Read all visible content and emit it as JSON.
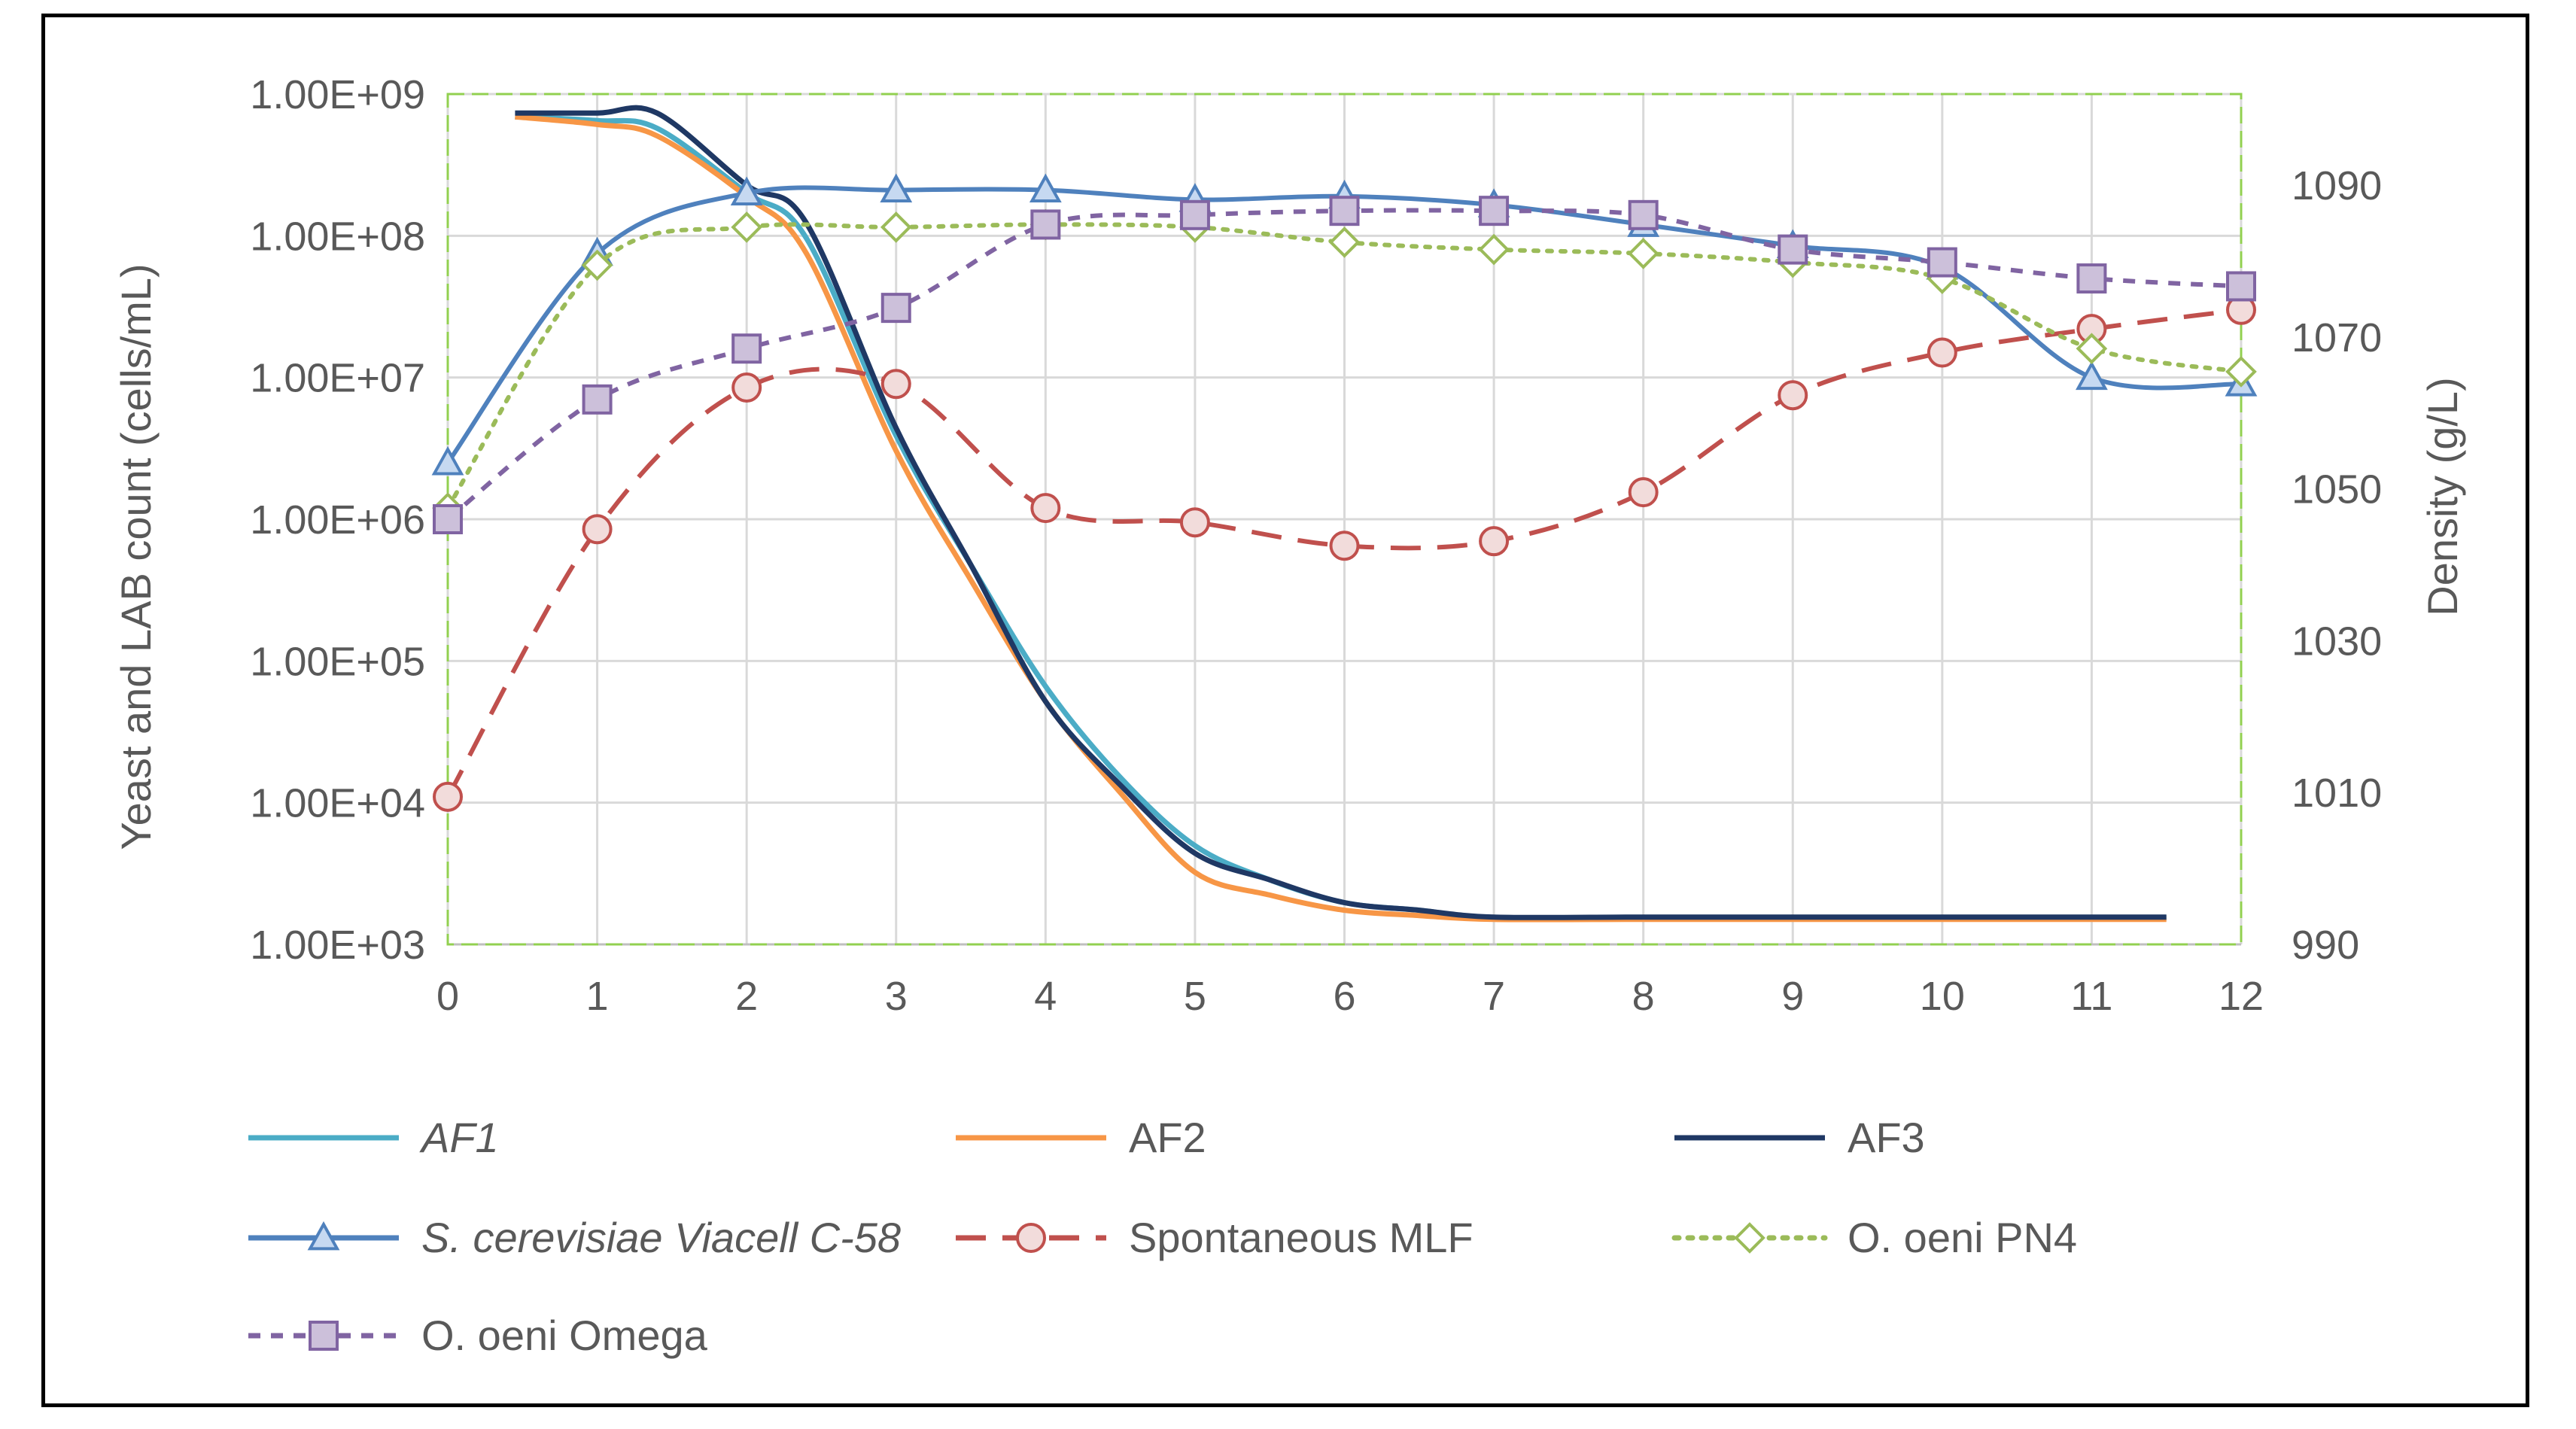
{
  "chart_data": {
    "type": "line",
    "title": "",
    "xlabel": "",
    "ylabel": "Yeast and LAB count (cells/mL)",
    "y2label": "Density (g/L)",
    "xlim": [
      0,
      12
    ],
    "x_ticks": [
      "0",
      "1",
      "2",
      "3",
      "4",
      "5",
      "6",
      "7",
      "8",
      "9",
      "10",
      "11",
      "12"
    ],
    "ylim_log10": [
      3,
      9
    ],
    "y_ticks": [
      "1.00E+03",
      "1.00E+04",
      "1.00E+05",
      "1.00E+06",
      "1.00E+07",
      "1.00E+08",
      "1.00E+09"
    ],
    "y2lim": [
      990,
      1102
    ],
    "y2_ticks": [
      "990",
      "1010",
      "1030",
      "1050",
      "1070",
      "1090"
    ],
    "grid": true,
    "legend_position": "bottom",
    "series": [
      {
        "name": "AF1",
        "axis": "right",
        "style": "solid",
        "marker": "none",
        "italic": true,
        "color": "#4bacc6",
        "points": [
          [
            0.45,
            1099
          ],
          [
            1,
            1098.5
          ],
          [
            1.4,
            1097.5
          ],
          [
            2,
            1089
          ],
          [
            2.4,
            1083
          ],
          [
            3,
            1057
          ],
          [
            3.5,
            1040
          ],
          [
            4,
            1024
          ],
          [
            4.5,
            1012
          ],
          [
            5,
            1003
          ],
          [
            5.5,
            998.5
          ],
          [
            6,
            995.5
          ],
          [
            6.5,
            994.5
          ],
          [
            7,
            993.5
          ],
          [
            8,
            993.5
          ],
          [
            9,
            993.5
          ],
          [
            10,
            993.5
          ],
          [
            11,
            993.5
          ],
          [
            11.5,
            993.5
          ]
        ]
      },
      {
        "name": "AF2",
        "axis": "right",
        "style": "solid",
        "marker": "none",
        "italic": false,
        "color": "#f79646",
        "points": [
          [
            0.45,
            1099
          ],
          [
            1,
            1098
          ],
          [
            1.4,
            1096.5
          ],
          [
            2,
            1088.5
          ],
          [
            2.4,
            1081
          ],
          [
            3,
            1055
          ],
          [
            3.5,
            1038
          ],
          [
            4,
            1022
          ],
          [
            4.5,
            1010
          ],
          [
            5,
            999.5
          ],
          [
            5.5,
            996.5
          ],
          [
            6,
            994.5
          ],
          [
            6.5,
            993.8
          ],
          [
            7,
            993.3
          ],
          [
            8,
            993.3
          ],
          [
            9,
            993.3
          ],
          [
            10,
            993.3
          ],
          [
            11,
            993.3
          ],
          [
            11.5,
            993.3
          ]
        ]
      },
      {
        "name": "AF3",
        "axis": "right",
        "style": "solid",
        "marker": "none",
        "italic": false,
        "color": "#1f3864",
        "points": [
          [
            0.45,
            1099.5
          ],
          [
            1,
            1099.5
          ],
          [
            1.4,
            1099.5
          ],
          [
            2,
            1090
          ],
          [
            2.4,
            1085
          ],
          [
            3,
            1058
          ],
          [
            3.5,
            1040
          ],
          [
            4,
            1022
          ],
          [
            4.5,
            1011
          ],
          [
            5,
            1002
          ],
          [
            5.5,
            998.5
          ],
          [
            6,
            995.5
          ],
          [
            6.5,
            994.5
          ],
          [
            7,
            993.6
          ],
          [
            8,
            993.6
          ],
          [
            9,
            993.6
          ],
          [
            10,
            993.6
          ],
          [
            11,
            993.6
          ],
          [
            11.5,
            993.6
          ]
        ]
      },
      {
        "name": "S. cerevisiae Viacell C-58",
        "axis": "left",
        "style": "solid",
        "marker": "triangle",
        "italic": true,
        "color": "#4f81bd",
        "x": [
          0,
          1,
          2,
          3,
          4,
          5,
          6,
          7,
          8,
          9,
          10,
          11,
          12
        ],
        "values": [
          2500000.0,
          75000000.0,
          200000000.0,
          210000000.0,
          210000000.0,
          180000000.0,
          190000000.0,
          165000000.0,
          120000000.0,
          85000000.0,
          60000000.0,
          10000000.0,
          9000000.0
        ]
      },
      {
        "name": "Spontaneous MLF",
        "axis": "left",
        "style": "dashed",
        "marker": "circle",
        "italic": false,
        "color": "#c0504d",
        "x": [
          0,
          1,
          2,
          3,
          4,
          5,
          6,
          7,
          8,
          9,
          10,
          11,
          12
        ],
        "values": [
          11000.0,
          850000.0,
          8500000.0,
          9000000.0,
          1200000.0,
          950000.0,
          650000.0,
          700000.0,
          1550000.0,
          7500000.0,
          15000000.0,
          22000000.0,
          30000000.0
        ]
      },
      {
        "name": "O. oeni PN4",
        "axis": "left",
        "style": "dotted",
        "marker": "diamond",
        "italic": false,
        "color": "#9bbb59",
        "x": [
          0,
          1,
          2,
          3,
          4,
          5,
          6,
          7,
          8,
          9,
          10,
          11,
          12
        ],
        "values": [
          1200000.0,
          62000000.0,
          115000000.0,
          115000000.0,
          120000000.0,
          115000000.0,
          90000000.0,
          80000000.0,
          75000000.0,
          65000000.0,
          50000000.0,
          16000000.0,
          11000000.0
        ]
      },
      {
        "name": "O. oeni Omega",
        "axis": "left",
        "style": "shortdash",
        "marker": "square",
        "italic": false,
        "color": "#8064a2",
        "x": [
          0,
          1,
          2,
          3,
          4,
          5,
          6,
          7,
          8,
          9,
          10,
          11,
          12
        ],
        "values": [
          1000000.0,
          7000000.0,
          16000000.0,
          31000000.0,
          120000000.0,
          140000000.0,
          150000000.0,
          150000000.0,
          140000000.0,
          80000000.0,
          65000000.0,
          50000000.0,
          44000000.0
        ]
      }
    ]
  }
}
